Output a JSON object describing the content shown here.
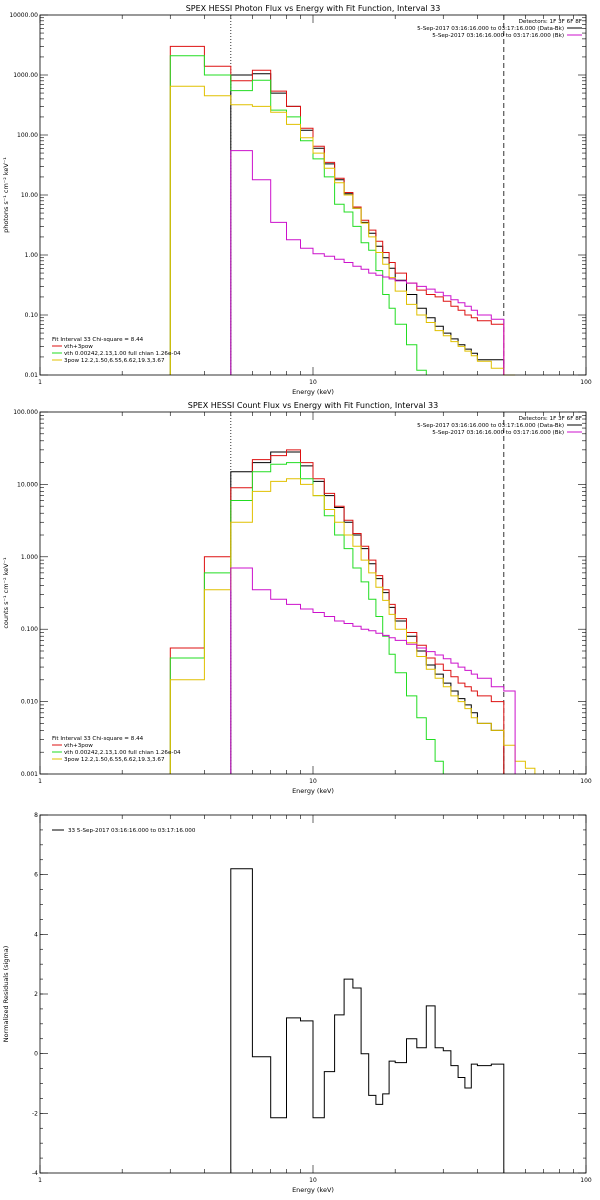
{
  "colors": {
    "black": "#000000",
    "red": "#dd1111",
    "green": "#22dd22",
    "yellow": "#e0c000",
    "magenta": "#cc11cc"
  },
  "chart_data": [
    {
      "type": "line",
      "title": "SPEX HESSI Photon Flux vs Energy with Fit Function, Interval 33",
      "xlabel": "Energy (keV)",
      "ylabel": "photons s⁻¹ cm⁻² keV⁻¹",
      "xscale": "log",
      "yscale": "log",
      "xlim": [
        1,
        100
      ],
      "ylim": [
        0.01,
        10000
      ],
      "xticks": [
        {
          "v": 1,
          "label": "1"
        },
        {
          "v": 10,
          "label": "10"
        },
        {
          "v": 100,
          "label": "100"
        }
      ],
      "yticks": [
        {
          "v": 0.01,
          "label": "0.01"
        },
        {
          "v": 0.1,
          "label": "0.10"
        },
        {
          "v": 1,
          "label": "1.00"
        },
        {
          "v": 10,
          "label": "10.00"
        },
        {
          "v": 100,
          "label": "100.00"
        },
        {
          "v": 1000,
          "label": "1000.00"
        },
        {
          "v": 10000,
          "label": "10000.00"
        }
      ],
      "vlines": [
        {
          "x": 5,
          "style": "dotted"
        },
        {
          "x": 50,
          "style": "dashed"
        }
      ],
      "bin_edges": [
        3,
        4,
        5,
        6,
        7,
        8,
        9,
        10,
        11,
        12,
        13,
        14,
        15,
        16,
        17,
        18,
        19,
        20,
        22,
        24,
        26,
        28,
        30,
        32,
        34,
        36,
        38,
        40,
        45,
        50,
        55
      ],
      "series": [
        {
          "color": "#000000",
          "values": [
            null,
            null,
            1000,
            1050,
            500,
            300,
            120,
            60,
            33,
            18,
            10.5,
            6,
            3.5,
            2.3,
            1.4,
            0.9,
            0.6,
            0.38,
            0.22,
            0.13,
            0.09,
            0.065,
            0.05,
            0.04,
            0.032,
            0.027,
            0.023,
            0.018,
            0.018,
            null
          ]
        },
        {
          "color": "#dd1111",
          "values": [
            3000,
            1400,
            800,
            1200,
            540,
            300,
            130,
            65,
            35,
            19,
            11,
            6.3,
            3.8,
            2.6,
            1.7,
            1.1,
            0.75,
            0.5,
            0.34,
            0.26,
            0.22,
            0.2,
            0.17,
            0.14,
            0.12,
            0.1,
            0.09,
            0.08,
            0.07,
            null
          ]
        },
        {
          "color": "#22dd22",
          "values": [
            2100,
            1000,
            550,
            820,
            260,
            200,
            80,
            40,
            20,
            7,
            5.2,
            3,
            1.6,
            1.2,
            0.55,
            0.22,
            0.13,
            0.07,
            0.032,
            0.012,
            null,
            null,
            null,
            null,
            null,
            null,
            null,
            null,
            null,
            null
          ]
        },
        {
          "color": "#e0c000",
          "values": [
            650,
            450,
            320,
            300,
            240,
            150,
            90,
            50,
            28,
            16,
            10,
            6,
            3.4,
            2,
            1.1,
            0.7,
            0.42,
            0.25,
            0.15,
            0.1,
            0.075,
            0.055,
            0.045,
            0.036,
            0.03,
            0.025,
            0.021,
            0.017,
            0.013,
            0.01
          ]
        },
        {
          "color": "#cc11cc",
          "values": [
            null,
            null,
            55,
            18,
            3.5,
            1.8,
            1.3,
            1.05,
            0.95,
            0.85,
            0.75,
            0.65,
            0.58,
            0.5,
            0.46,
            0.43,
            0.4,
            0.37,
            0.34,
            0.3,
            0.27,
            0.24,
            0.21,
            0.18,
            0.16,
            0.14,
            0.12,
            0.1,
            0.085,
            null
          ]
        }
      ],
      "legend_top": [
        "Detectors: 1F 3F 6F 8F",
        "5-Sep-2017 03:16:16.000 to 03:17:16.000 (Data-Bk)",
        "5-Sep-2017 03:16:16.000 to 03:17:16.000 (Bk)"
      ],
      "legend_top_colors": [
        "",
        "#000000",
        "#cc11cc"
      ],
      "legend_bottom": [
        "Fit Interval 33   Chi-square = 8.44",
        "vth+3pow",
        "vth 0.00242,2.13,1.00  full chian 1.26e-04",
        "3pow 12.2,1.50,6.55,6.62,19.3,3.67"
      ],
      "legend_bottom_colors": [
        "",
        "#dd1111",
        "#22dd22",
        "#e0c000"
      ]
    },
    {
      "type": "line",
      "title": "SPEX HESSI Count Flux vs Energy with Fit Function, Interval 33",
      "xlabel": "Energy (keV)",
      "ylabel": "counts s⁻¹ cm⁻² keV⁻¹",
      "xscale": "log",
      "yscale": "log",
      "xlim": [
        1,
        100
      ],
      "ylim": [
        0.001,
        100
      ],
      "xticks": [
        {
          "v": 1,
          "label": "1"
        },
        {
          "v": 10,
          "label": "10"
        },
        {
          "v": 100,
          "label": "100"
        }
      ],
      "yticks": [
        {
          "v": 0.001,
          "label": "0.001"
        },
        {
          "v": 0.01,
          "label": "0.010"
        },
        {
          "v": 0.1,
          "label": "0.100"
        },
        {
          "v": 1,
          "label": "1.000"
        },
        {
          "v": 10,
          "label": "10.000"
        },
        {
          "v": 100,
          "label": "100.000"
        }
      ],
      "vlines": [
        {
          "x": 5,
          "style": "dotted"
        },
        {
          "x": 50,
          "style": "dashed"
        }
      ],
      "bin_edges": [
        3,
        4,
        5,
        6,
        7,
        8,
        9,
        10,
        11,
        12,
        13,
        14,
        15,
        16,
        17,
        18,
        19,
        20,
        22,
        24,
        26,
        28,
        30,
        32,
        34,
        36,
        38,
        40,
        45,
        50,
        55,
        60,
        65
      ],
      "series": [
        {
          "color": "#000000",
          "values": [
            null,
            null,
            15,
            20,
            28,
            28,
            18,
            11,
            7,
            4.8,
            3,
            2,
            1.3,
            0.8,
            0.5,
            0.32,
            0.2,
            0.13,
            0.08,
            0.05,
            0.032,
            0.024,
            0.018,
            0.014,
            0.011,
            0.009,
            0.007,
            0.005,
            0.004,
            null,
            null,
            null
          ]
        },
        {
          "color": "#dd1111",
          "values": [
            0.055,
            1.0,
            9,
            22,
            25,
            30,
            20,
            12,
            7.5,
            5,
            3.2,
            2.1,
            1.4,
            0.9,
            0.55,
            0.35,
            0.22,
            0.14,
            0.09,
            0.06,
            0.04,
            0.033,
            0.027,
            0.022,
            0.018,
            0.016,
            0.014,
            0.012,
            0.01,
            null,
            null,
            null
          ]
        },
        {
          "color": "#22dd22",
          "values": [
            0.04,
            0.6,
            6,
            15,
            19,
            20,
            12,
            7,
            3.7,
            2,
            1.3,
            0.7,
            0.45,
            0.26,
            0.15,
            0.08,
            0.045,
            0.025,
            0.012,
            0.006,
            0.003,
            0.0015,
            null,
            null,
            null,
            null,
            null,
            null,
            null,
            null,
            null,
            null
          ]
        },
        {
          "color": "#e0c000",
          "values": [
            0.02,
            0.35,
            3,
            8,
            11,
            12,
            10,
            7,
            4.5,
            3,
            2,
            1.4,
            0.9,
            0.6,
            0.38,
            0.25,
            0.16,
            0.1,
            0.065,
            0.042,
            0.028,
            0.021,
            0.016,
            0.012,
            0.01,
            0.008,
            0.006,
            0.005,
            0.004,
            0.0025,
            0.0015,
            0.0012
          ]
        },
        {
          "color": "#cc11cc",
          "values": [
            null,
            null,
            0.7,
            0.35,
            0.26,
            0.22,
            0.19,
            0.17,
            0.15,
            0.13,
            0.12,
            0.11,
            0.1,
            0.095,
            0.088,
            0.082,
            0.076,
            0.07,
            0.062,
            0.055,
            0.049,
            0.044,
            0.039,
            0.034,
            0.03,
            0.027,
            0.024,
            0.021,
            0.016,
            0.014,
            null,
            null
          ]
        }
      ],
      "legend_top": [
        "Detectors: 1F 3F 6F 8F",
        "5-Sep-2017 03:16:16.000 to 03:17:16.000 (Data-Bk)",
        "5-Sep-2017 03:16:16.000 to 03:17:16.000 (Bk)"
      ],
      "legend_top_colors": [
        "",
        "#000000",
        "#cc11cc"
      ],
      "legend_bottom": [
        "Fit Interval 33   Chi-square = 8.44",
        "vth+3pow",
        "vth 0.00242,2.13,1.00  full chian 1.26e-04",
        "3pow 12.2,1.50,6.55,6.62,19.3,3.67"
      ],
      "legend_bottom_colors": [
        "",
        "#dd1111",
        "#22dd22",
        "#e0c000"
      ]
    },
    {
      "type": "line",
      "title": "",
      "xlabel": "Energy (keV)",
      "ylabel": "Normalized Residuals (sigma)",
      "xscale": "log",
      "yscale": "linear",
      "xlim": [
        1,
        100
      ],
      "ylim": [
        -4,
        8
      ],
      "xticks": [
        {
          "v": 1,
          "label": "1"
        },
        {
          "v": 10,
          "label": "10"
        },
        {
          "v": 100,
          "label": "100"
        }
      ],
      "yticks": [
        {
          "v": -4,
          "label": "-4"
        },
        {
          "v": -2,
          "label": "-2"
        },
        {
          "v": 0,
          "label": "0"
        },
        {
          "v": 2,
          "label": "2"
        },
        {
          "v": 4,
          "label": "4"
        },
        {
          "v": 6,
          "label": "6"
        },
        {
          "v": 8,
          "label": "8"
        }
      ],
      "vlines": [],
      "bin_edges": [
        5,
        6,
        7,
        8,
        9,
        10,
        11,
        12,
        13,
        14,
        15,
        16,
        17,
        18,
        19,
        20,
        22,
        24,
        26,
        28,
        30,
        32,
        34,
        36,
        38,
        40,
        45,
        50
      ],
      "series": [
        {
          "color": "#000000",
          "values": [
            6.2,
            -0.1,
            -2.15,
            1.2,
            1.1,
            -2.15,
            -0.6,
            1.3,
            2.5,
            2.2,
            0,
            -1.4,
            -1.7,
            -1.35,
            -0.25,
            -0.3,
            0.5,
            0.2,
            1.6,
            0.2,
            0.1,
            -0.4,
            -0.8,
            -1.15,
            -0.35,
            -0.4,
            -0.35
          ]
        }
      ],
      "legend_top": [
        "33  5-Sep-2017 03:16:16.000 to 03:17:16.000"
      ],
      "legend_top_colors": [
        "#000000"
      ],
      "legend_bottom": [],
      "legend_bottom_colors": []
    }
  ]
}
